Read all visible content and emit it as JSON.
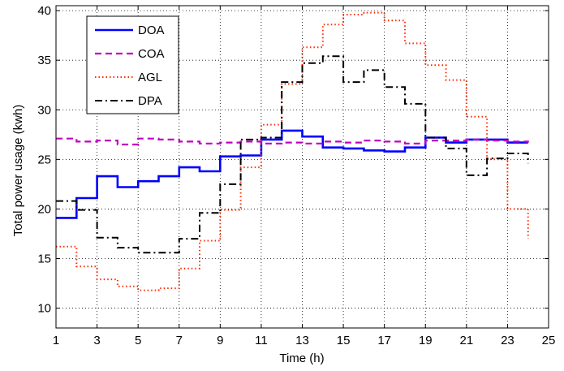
{
  "chart_data": {
    "type": "line",
    "title": "",
    "xlabel": "Time (h)",
    "ylabel": "Total power usage (kwh)",
    "xlim": [
      1,
      25
    ],
    "ylim": [
      8,
      40.5
    ],
    "xticks": [
      "1",
      "3",
      "5",
      "7",
      "9",
      "11",
      "13",
      "15",
      "17",
      "19",
      "21",
      "23",
      "25"
    ],
    "yticks": [
      "10",
      "15",
      "20",
      "25",
      "30",
      "35",
      "40"
    ],
    "grid": true,
    "legend_position": "top-left",
    "step": true,
    "x": [
      1,
      2,
      3,
      4,
      5,
      6,
      7,
      8,
      9,
      10,
      11,
      12,
      13,
      14,
      15,
      16,
      17,
      18,
      19,
      20,
      21,
      22,
      23,
      24
    ],
    "series": [
      {
        "name": "DOA",
        "color": "#0000ff",
        "style": "solid",
        "values": [
          19.1,
          21.1,
          23.3,
          22.2,
          22.8,
          23.3,
          24.2,
          23.8,
          25.3,
          25.4,
          27.0,
          27.9,
          27.3,
          26.2,
          26.1,
          25.9,
          25.8,
          26.2,
          27.2,
          26.7,
          27.0,
          27.0,
          26.7,
          26.7
        ]
      },
      {
        "name": "COA",
        "color": "#c000c0",
        "style": "dashed",
        "values": [
          27.1,
          26.8,
          26.9,
          26.5,
          27.1,
          27.0,
          26.8,
          26.6,
          26.7,
          26.8,
          26.6,
          26.7,
          26.6,
          26.8,
          26.7,
          26.9,
          26.8,
          26.6,
          26.9,
          26.9,
          27.0,
          26.9,
          26.8,
          26.7
        ]
      },
      {
        "name": "AGL",
        "color": "#ff2a00",
        "style": "dotted",
        "values": [
          16.2,
          14.2,
          12.9,
          12.2,
          11.8,
          12.0,
          14.0,
          16.8,
          19.9,
          24.2,
          28.5,
          32.6,
          36.3,
          38.6,
          39.6,
          39.8,
          39.0,
          36.7,
          34.5,
          33.0,
          29.3,
          25.0,
          20.0,
          17.0
        ]
      },
      {
        "name": "DPA",
        "color": "#000000",
        "style": "dashdot",
        "values": [
          20.8,
          19.9,
          17.1,
          16.1,
          15.6,
          15.6,
          17.0,
          19.6,
          22.5,
          27.0,
          27.2,
          32.8,
          34.7,
          35.4,
          32.8,
          34.0,
          32.3,
          30.6,
          27.2,
          26.1,
          23.4,
          25.1,
          25.6,
          24.6
        ]
      }
    ]
  }
}
